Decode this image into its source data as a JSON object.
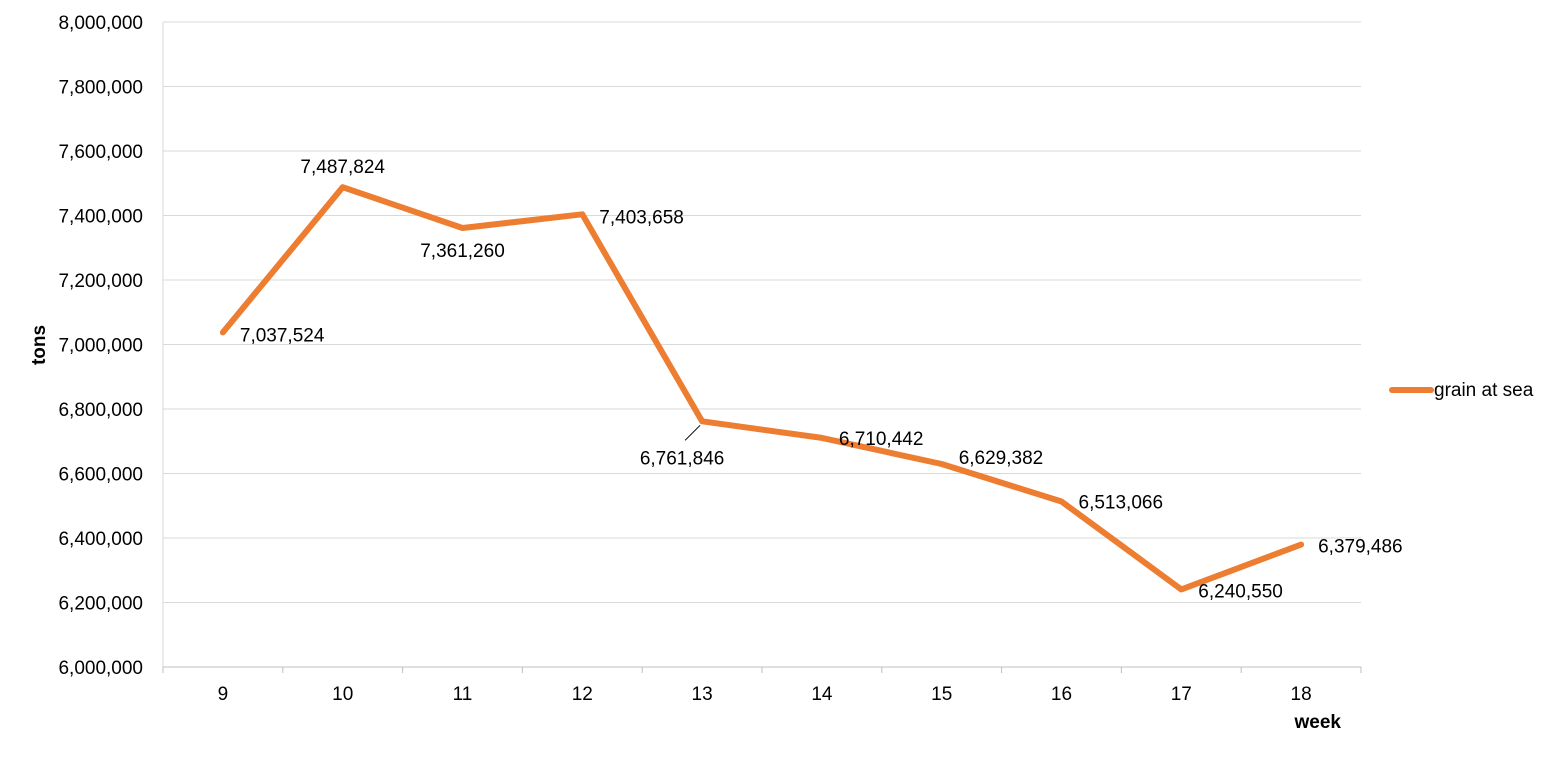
{
  "chart_data": {
    "type": "line",
    "x": [
      "9",
      "10",
      "11",
      "12",
      "13",
      "14",
      "15",
      "16",
      "17",
      "18"
    ],
    "series": [
      {
        "name": "grain at sea",
        "color": "#ED7D31",
        "values": [
          7037524,
          7487824,
          7361260,
          7403658,
          6761846,
          6710442,
          6629382,
          6513066,
          6240550,
          6379486
        ],
        "labels": [
          "7,037,524",
          "7,487,824",
          "7,361,260",
          "7,403,658",
          "6,761,846",
          "6,710,442",
          "6,629,382",
          "6,513,066",
          "6,240,550",
          "6,379,486"
        ]
      }
    ],
    "xlabel": "week",
    "ylabel": "tons",
    "ylim": [
      6000000,
      8000000
    ],
    "yticks": [
      6000000,
      6200000,
      6400000,
      6600000,
      6800000,
      7000000,
      7200000,
      7400000,
      7600000,
      7800000,
      8000000
    ],
    "ytick_labels": [
      "6,000,000",
      "6,200,000",
      "6,400,000",
      "6,600,000",
      "6,800,000",
      "7,000,000",
      "7,200,000",
      "7,400,000",
      "7,600,000",
      "7,800,000",
      "8,000,000"
    ],
    "grid": true,
    "legend_position": "right"
  }
}
